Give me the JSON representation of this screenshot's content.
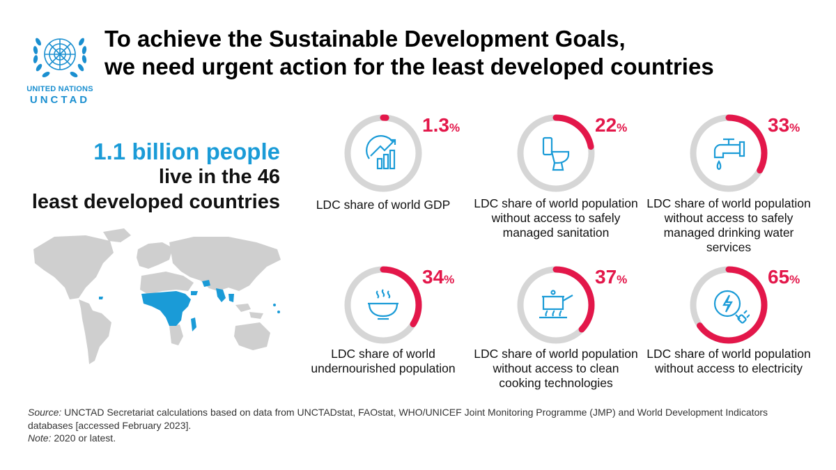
{
  "logo": {
    "org": "UNITED NATIONS",
    "name": "UNCTAD",
    "brand_color": "#1a8fd0"
  },
  "title": {
    "line1": "To achieve the Sustainable Development Goals,",
    "line2": "we need urgent action for the least developed countries"
  },
  "headline": {
    "line1": "1.1 billion people",
    "line2": "live in the 46",
    "line3": "least developed countries"
  },
  "colors": {
    "accent_red": "#e3174a",
    "accent_blue": "#1a9bd7",
    "ring_grey": "#d6d6d6",
    "map_grey": "#cfcfcf"
  },
  "stats": [
    {
      "value": "1.3",
      "sign": "%",
      "fraction": 0.013,
      "icon": "gdp-chart-icon",
      "desc_plain": "LDC share of world GDP",
      "desc_rest": ""
    },
    {
      "value": "22",
      "sign": "%",
      "fraction": 0.22,
      "icon": "toilet-icon",
      "desc_plain": "LDC share of world population",
      "desc_rest": "without access to safely managed sanitation"
    },
    {
      "value": "33",
      "sign": "%",
      "fraction": 0.33,
      "icon": "water-tap-icon",
      "desc_plain": "LDC share of world population",
      "desc_rest": "without access to safely managed drinking water services"
    },
    {
      "value": "34",
      "sign": "%",
      "fraction": 0.34,
      "icon": "food-bowl-icon",
      "desc_plain": "LDC share of world",
      "desc_rest": "undernourished population"
    },
    {
      "value": "37",
      "sign": "%",
      "fraction": 0.37,
      "icon": "cooking-pot-icon",
      "desc_plain": "LDC share of world population",
      "desc_rest": "without access to clean cooking technologies"
    },
    {
      "value": "65",
      "sign": "%",
      "fraction": 0.65,
      "icon": "electricity-plug-icon",
      "desc_plain": "LDC share of world population",
      "desc_rest": "without access to electricity"
    }
  ],
  "source": {
    "label": "Source:",
    "text": "UNCTAD Secretariat calculations based on data from UNCTADstat, FAOstat, WHO/UNICEF Joint Monitoring Programme (JMP) and World Development Indicators databases [accessed February 2023].",
    "note_label": "Note:",
    "note_text": "2020 or latest."
  }
}
